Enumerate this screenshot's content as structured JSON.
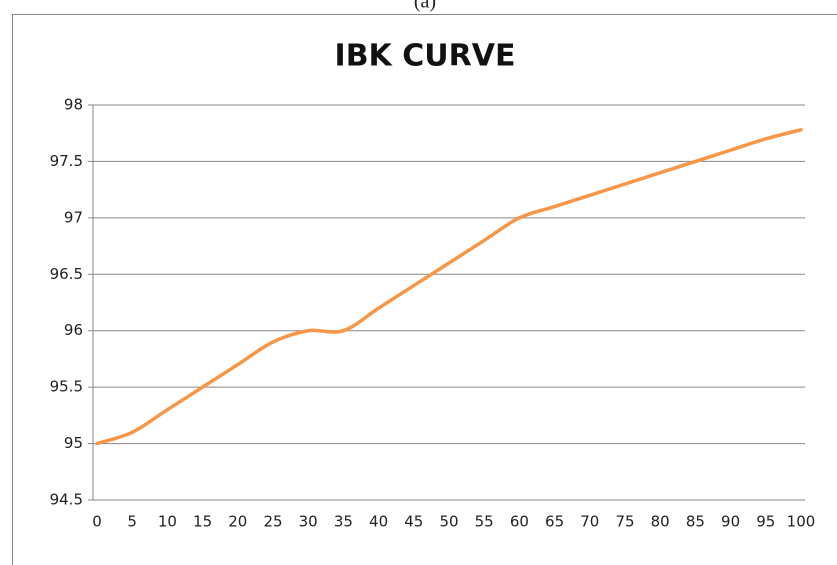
{
  "caption": "(a)",
  "chart_data": {
    "type": "line",
    "title": "IBK CURVE",
    "x": [
      0,
      5,
      10,
      15,
      20,
      25,
      30,
      35,
      40,
      45,
      50,
      55,
      60,
      65,
      70,
      75,
      80,
      85,
      90,
      95,
      100
    ],
    "xlim": [
      0,
      100
    ],
    "series": [
      {
        "name": "IBK",
        "color": "#f79646",
        "values": [
          95.0,
          95.1,
          95.3,
          95.5,
          95.7,
          95.9,
          96.0,
          96.0,
          96.2,
          96.4,
          96.6,
          96.8,
          97.0,
          97.1,
          97.2,
          97.3,
          97.4,
          97.5,
          97.6,
          97.7,
          97.78
        ]
      }
    ],
    "ylim": [
      94.5,
      98
    ],
    "yticks": [
      94.5,
      95,
      95.5,
      96,
      96.5,
      97,
      97.5,
      98
    ],
    "grid": true
  }
}
